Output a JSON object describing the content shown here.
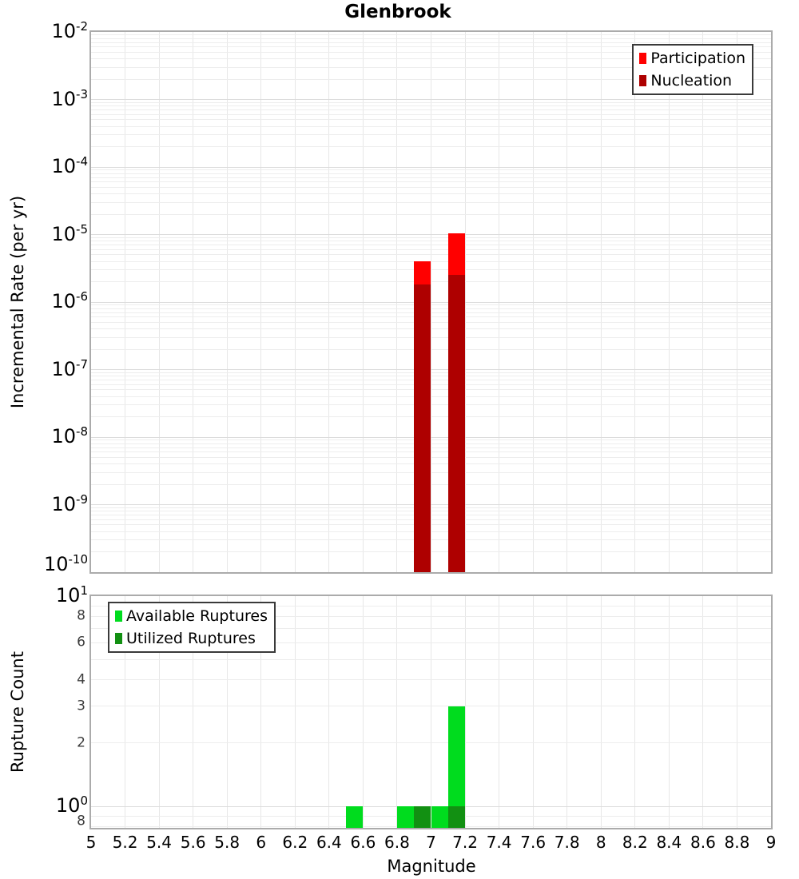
{
  "title": "Glenbrook",
  "axes": {
    "xlabel": "Magnitude",
    "xlim": [
      5,
      9
    ],
    "x_ticks": [
      {
        "value": 5,
        "label": "5"
      },
      {
        "value": 5.2,
        "label": "5.2"
      },
      {
        "value": 5.4,
        "label": "5.4"
      },
      {
        "value": 5.6,
        "label": "5.6"
      },
      {
        "value": 5.8,
        "label": "5.8"
      },
      {
        "value": 6,
        "label": "6"
      },
      {
        "value": 6.2,
        "label": "6.2"
      },
      {
        "value": 6.4,
        "label": "6.4"
      },
      {
        "value": 6.6,
        "label": "6.6"
      },
      {
        "value": 6.8,
        "label": "6.8"
      },
      {
        "value": 7,
        "label": "7"
      },
      {
        "value": 7.2,
        "label": "7.2"
      },
      {
        "value": 7.4,
        "label": "7.4"
      },
      {
        "value": 7.6,
        "label": "7.6"
      },
      {
        "value": 7.8,
        "label": "7.8"
      },
      {
        "value": 8,
        "label": "8"
      },
      {
        "value": 8.2,
        "label": "8.2"
      },
      {
        "value": 8.4,
        "label": "8.4"
      },
      {
        "value": 8.6,
        "label": "8.6"
      },
      {
        "value": 8.8,
        "label": "8.8"
      },
      {
        "value": 9,
        "label": "9"
      }
    ]
  },
  "chart_data": [
    {
      "panel": "rate",
      "type": "bar",
      "title": "Glenbrook",
      "xlabel": "Magnitude",
      "ylabel": "Incremental Rate (per yr)",
      "yscale": "log",
      "xlim": [
        5,
        9
      ],
      "ylim": [
        1e-10,
        0.01
      ],
      "y_tick_exponents": [
        -2,
        -3,
        -4,
        -5,
        -6,
        -7,
        -8,
        -9,
        -10
      ],
      "bin_width": 0.1,
      "grid": true,
      "legend_position": "top-right",
      "series": [
        {
          "name": "Participation",
          "color": "#ff0000",
          "bins": [
            {
              "x": 6.95,
              "value": 4e-06
            },
            {
              "x": 7.15,
              "value": 1.05e-05
            }
          ]
        },
        {
          "name": "Nucleation",
          "color": "#ae0000",
          "bins": [
            {
              "x": 6.95,
              "value": 1.8e-06
            },
            {
              "x": 7.15,
              "value": 2.5e-06
            }
          ]
        }
      ]
    },
    {
      "panel": "count",
      "type": "bar",
      "xlabel": "Magnitude",
      "ylabel": "Rupture Count",
      "yscale": "log",
      "xlim": [
        5,
        9
      ],
      "ylim": [
        0.79,
        10
      ],
      "y_ticks_major": [
        {
          "value": 10,
          "exp": 1
        },
        {
          "value": 1,
          "exp": 0
        }
      ],
      "y_ticks_minor": [
        {
          "value": 8,
          "label": "8"
        },
        {
          "value": 6,
          "label": "6"
        },
        {
          "value": 4,
          "label": "4"
        },
        {
          "value": 3,
          "label": "3"
        },
        {
          "value": 2,
          "label": "2"
        },
        {
          "value": 0.8,
          "label": "8"
        }
      ],
      "bin_width": 0.1,
      "grid": true,
      "legend_position": "top-left",
      "series": [
        {
          "name": "Available Ruptures",
          "color": "#00dc1e",
          "bins": [
            {
              "x": 6.55,
              "value": 1
            },
            {
              "x": 6.85,
              "value": 1
            },
            {
              "x": 6.95,
              "value": 1
            },
            {
              "x": 7.05,
              "value": 1
            },
            {
              "x": 7.15,
              "value": 3
            }
          ]
        },
        {
          "name": "Utilized Ruptures",
          "color": "#129012",
          "bins": [
            {
              "x": 6.95,
              "value": 1
            },
            {
              "x": 7.15,
              "value": 1
            }
          ]
        }
      ]
    }
  ]
}
